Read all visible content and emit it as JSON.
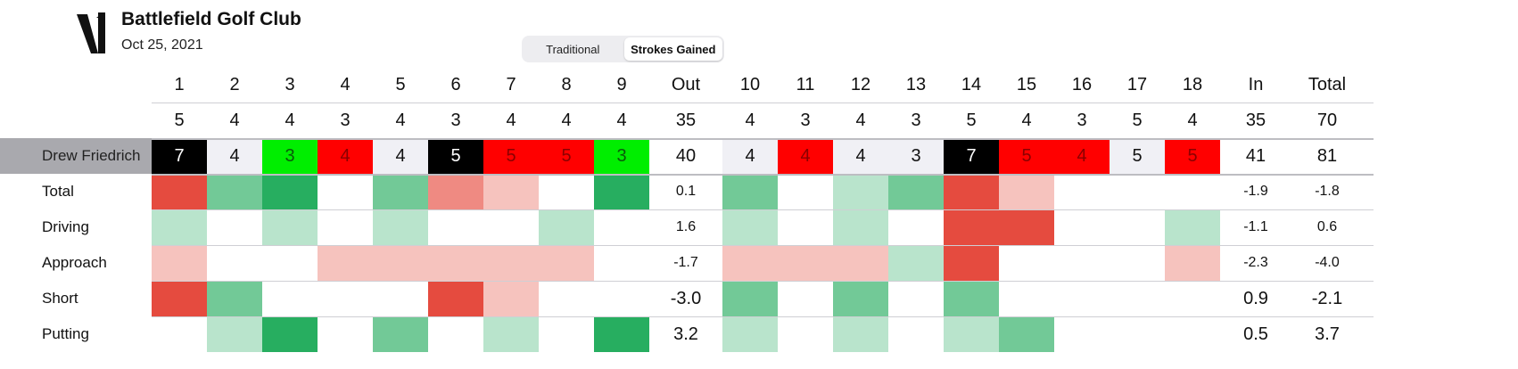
{
  "header": {
    "club_name": "Battlefield Golf Club",
    "date": "Oct 25, 2021"
  },
  "view_toggle": {
    "options": [
      "Traditional",
      "Strokes Gained"
    ],
    "selected": "Strokes Gained"
  },
  "scorecard": {
    "holes": [
      "1",
      "2",
      "3",
      "4",
      "5",
      "6",
      "7",
      "8",
      "9",
      "Out",
      "10",
      "11",
      "12",
      "13",
      "14",
      "15",
      "16",
      "17",
      "18",
      "In",
      "Total"
    ],
    "par": [
      "5",
      "4",
      "4",
      "3",
      "4",
      "3",
      "4",
      "4",
      "4",
      "35",
      "4",
      "3",
      "4",
      "3",
      "5",
      "4",
      "3",
      "5",
      "4",
      "35",
      "70"
    ],
    "player": {
      "name": "Drew Friedrich",
      "scores": [
        "7",
        "4",
        "3",
        "4",
        "4",
        "5",
        "5",
        "5",
        "3",
        "40",
        "4",
        "4",
        "4",
        "3",
        "7",
        "5",
        "4",
        "5",
        "5",
        "41",
        "81"
      ],
      "score_results": [
        "double",
        "par",
        "birdie",
        "bogey",
        "par",
        "double",
        "bogey",
        "bogey",
        "birdie",
        "summary",
        "par",
        "bogey",
        "par",
        "par",
        "double",
        "bogey",
        "bogey",
        "par",
        "bogey",
        "summary",
        "summary"
      ]
    },
    "sg_rows": [
      {
        "label": "Total",
        "levels": [
          "neg2",
          "pos1",
          "pos2",
          "",
          "pos1",
          "negm",
          "neg1",
          "",
          "pos2",
          "",
          "pos1",
          "",
          "pos0",
          "pos1",
          "neg2",
          "neg1",
          "",
          "",
          "",
          "",
          ""
        ],
        "out": "0.1",
        "in": "-1.9",
        "total": "-1.8"
      },
      {
        "label": "Driving",
        "levels": [
          "pos0",
          "",
          "pos0",
          "",
          "pos0",
          "",
          "",
          "pos0",
          "",
          "",
          "pos0",
          "",
          "pos0",
          "",
          "neg2",
          "neg2",
          "",
          "",
          "pos0",
          "",
          ""
        ],
        "out": "1.6",
        "in": "-1.1",
        "total": "0.6"
      },
      {
        "label": "Approach",
        "levels": [
          "neg1",
          "",
          "",
          "neg1",
          "neg1",
          "neg1",
          "neg1",
          "neg1",
          "",
          "",
          "neg1",
          "neg1",
          "neg1",
          "pos0",
          "neg2",
          "",
          "",
          "",
          "neg1",
          "",
          ""
        ],
        "out": "-1.7",
        "in": "-2.3",
        "total": "-4.0"
      },
      {
        "label": "Short",
        "levels": [
          "neg2",
          "pos1",
          "",
          "",
          "",
          "neg2",
          "neg1",
          "",
          "",
          "",
          "pos1",
          "",
          "pos1",
          "",
          "pos1",
          "",
          "",
          "",
          "",
          "",
          ""
        ],
        "out": "-3.0",
        "in": "0.9",
        "total": "-2.1"
      },
      {
        "label": "Putting",
        "levels": [
          "",
          "pos0",
          "pos2",
          "",
          "pos1",
          "",
          "pos0",
          "",
          "pos2",
          "",
          "pos0",
          "",
          "pos0",
          "",
          "pos0",
          "pos1",
          "",
          "",
          "",
          "",
          ""
        ],
        "out": "3.2",
        "in": "0.5",
        "total": "3.7"
      }
    ]
  },
  "colors": {
    "birdie": "#00ee00",
    "bogey": "#ff0000",
    "double": "#000000",
    "par": "#f0f0f5",
    "pos2": "#27ae60",
    "pos1": "#72c997",
    "pos0": "#b9e4cc",
    "neg1": "#f6c3be",
    "negm": "#ef8a82",
    "neg2": "#e54b3f",
    "player_label_bg": "#a9a9ae"
  }
}
